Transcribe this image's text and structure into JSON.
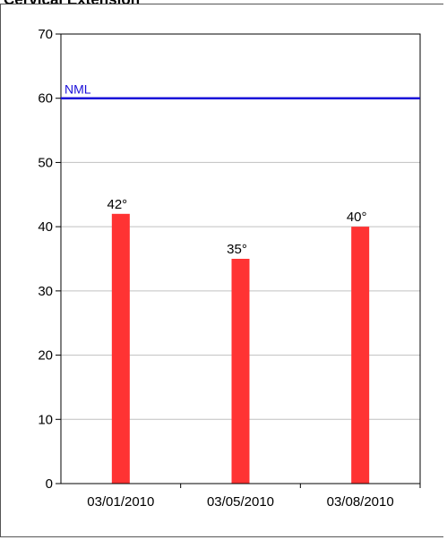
{
  "chart_data": {
    "type": "bar",
    "title": "Cervical Extension",
    "categories": [
      "03/01/2010",
      "03/05/2010",
      "03/08/2010"
    ],
    "values": [
      42,
      35,
      40
    ],
    "data_labels": [
      "42°",
      "35°",
      "40°"
    ],
    "ylim": [
      0,
      70
    ],
    "yticks": [
      0,
      10,
      20,
      30,
      40,
      50,
      60,
      70
    ],
    "grid": true,
    "reference_line": {
      "label": "NML",
      "value": 60,
      "color": "#1a0fd9"
    },
    "bar_color": "#ff3333",
    "xlabel": "",
    "ylabel": ""
  }
}
